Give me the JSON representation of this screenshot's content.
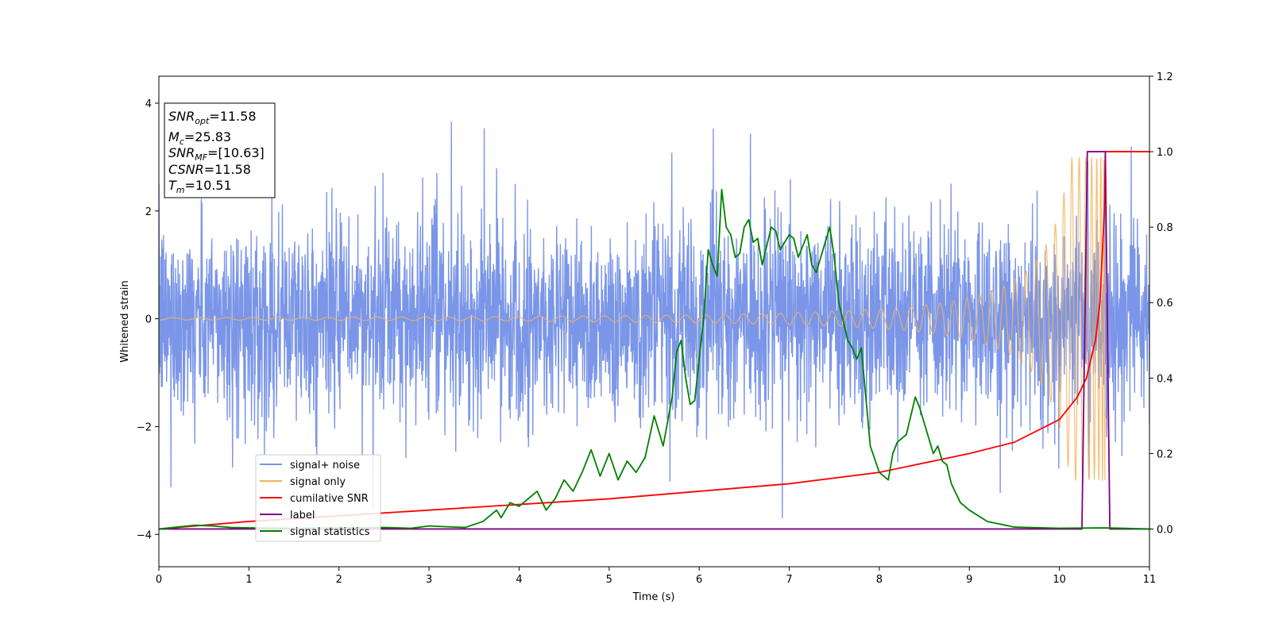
{
  "chart_data": {
    "type": "line",
    "xlabel": "Time (s)",
    "ylabel": "Whitened strain",
    "xlim": [
      0,
      11
    ],
    "ylim": [
      -4.6,
      4.5
    ],
    "y2lim": [
      -0.1,
      1.2
    ],
    "x_ticks": [
      "0",
      "1",
      "2",
      "3",
      "4",
      "5",
      "6",
      "7",
      "8",
      "9",
      "10",
      "11"
    ],
    "y_ticks": [
      "−4",
      "−2",
      "0",
      "2",
      "4"
    ],
    "y2_ticks": [
      "0.0",
      "0.2",
      "0.4",
      "0.6",
      "0.8",
      "1.0",
      "1.2"
    ],
    "legend_placement": "lower-left",
    "info_box": {
      "snr_opt": {
        "main": "SNR",
        "sub": "opt",
        "value": "=11.58"
      },
      "mc": {
        "main": "M",
        "sub": "c",
        "value": "=25.83"
      },
      "snr_mf": {
        "main": "SNR",
        "sub": "MF",
        "value": "=[10.63]"
      },
      "csnr": {
        "main": "CSNR",
        "value": "=11.58"
      },
      "tm": {
        "main": "T",
        "sub": "m",
        "value": "=10.51"
      }
    },
    "series": [
      {
        "name": "signal+ noise",
        "axis": "left",
        "color": "#7b96e8",
        "kind": "noise",
        "noise_std": 0.9,
        "x_range": [
          0,
          11
        ]
      },
      {
        "name": "signal only",
        "axis": "left",
        "color": "#f5b25a",
        "kind": "chirp",
        "x_range": [
          0,
          10.51
        ],
        "amplitude_start": 0.02,
        "amplitude_peak": 3.0,
        "merger_time": 10.51
      },
      {
        "name": "cumilative SNR",
        "axis": "right",
        "color": "#ff0000",
        "x": [
          0,
          1,
          2,
          3,
          4,
          5,
          6,
          7,
          8,
          9,
          9.5,
          10,
          10.2,
          10.3,
          10.4,
          10.45,
          10.5,
          10.51,
          11
        ],
        "y": [
          0.0,
          0.02,
          0.035,
          0.05,
          0.065,
          0.08,
          0.1,
          0.12,
          0.15,
          0.2,
          0.23,
          0.29,
          0.35,
          0.4,
          0.5,
          0.6,
          0.85,
          1.0,
          1.0
        ]
      },
      {
        "name": "label",
        "axis": "right",
        "color": "#800080",
        "x": [
          0,
          10.25,
          10.31,
          10.51,
          10.56,
          11
        ],
        "y": [
          0,
          0,
          1,
          1,
          0,
          0
        ]
      },
      {
        "name": "signal statistics",
        "axis": "right",
        "color": "#008000",
        "x": [
          0,
          0.2,
          0.4,
          0.6,
          0.8,
          1,
          1.5,
          2,
          2.5,
          2.8,
          3,
          3.2,
          3.4,
          3.6,
          3.7,
          3.75,
          3.8,
          3.9,
          4,
          4.1,
          4.2,
          4.3,
          4.4,
          4.5,
          4.6,
          4.7,
          4.8,
          4.9,
          5,
          5.1,
          5.2,
          5.3,
          5.4,
          5.5,
          5.6,
          5.7,
          5.75,
          5.8,
          5.85,
          5.9,
          5.95,
          6,
          6.05,
          6.1,
          6.15,
          6.2,
          6.25,
          6.3,
          6.35,
          6.4,
          6.45,
          6.5,
          6.55,
          6.6,
          6.65,
          6.7,
          6.75,
          6.8,
          6.85,
          6.9,
          6.95,
          7,
          7.05,
          7.1,
          7.15,
          7.2,
          7.25,
          7.3,
          7.35,
          7.4,
          7.45,
          7.5,
          7.55,
          7.6,
          7.65,
          7.7,
          7.75,
          7.8,
          7.85,
          7.9,
          8,
          8.05,
          8.1,
          8.15,
          8.2,
          8.25,
          8.3,
          8.35,
          8.4,
          8.45,
          8.5,
          8.55,
          8.6,
          8.65,
          8.7,
          8.75,
          8.8,
          8.9,
          9,
          9.2,
          9.5,
          10,
          10.5,
          11
        ],
        "y": [
          0,
          0.005,
          0.01,
          0.008,
          0.004,
          0.003,
          0.002,
          0.003,
          0.004,
          0.002,
          0.008,
          0.006,
          0.004,
          0.02,
          0.04,
          0.05,
          0.03,
          0.07,
          0.06,
          0.08,
          0.1,
          0.05,
          0.08,
          0.13,
          0.1,
          0.15,
          0.21,
          0.14,
          0.2,
          0.13,
          0.18,
          0.15,
          0.19,
          0.3,
          0.22,
          0.35,
          0.47,
          0.5,
          0.4,
          0.33,
          0.34,
          0.45,
          0.56,
          0.74,
          0.7,
          0.67,
          0.9,
          0.8,
          0.78,
          0.72,
          0.73,
          0.8,
          0.82,
          0.76,
          0.77,
          0.7,
          0.75,
          0.8,
          0.79,
          0.74,
          0.76,
          0.78,
          0.77,
          0.72,
          0.75,
          0.78,
          0.7,
          0.68,
          0.72,
          0.76,
          0.8,
          0.72,
          0.6,
          0.55,
          0.5,
          0.48,
          0.45,
          0.48,
          0.35,
          0.22,
          0.15,
          0.14,
          0.13,
          0.2,
          0.23,
          0.24,
          0.25,
          0.3,
          0.35,
          0.32,
          0.28,
          0.24,
          0.2,
          0.22,
          0.18,
          0.17,
          0.12,
          0.07,
          0.05,
          0.02,
          0.005,
          0.002,
          0.003,
          0.0
        ]
      }
    ]
  }
}
